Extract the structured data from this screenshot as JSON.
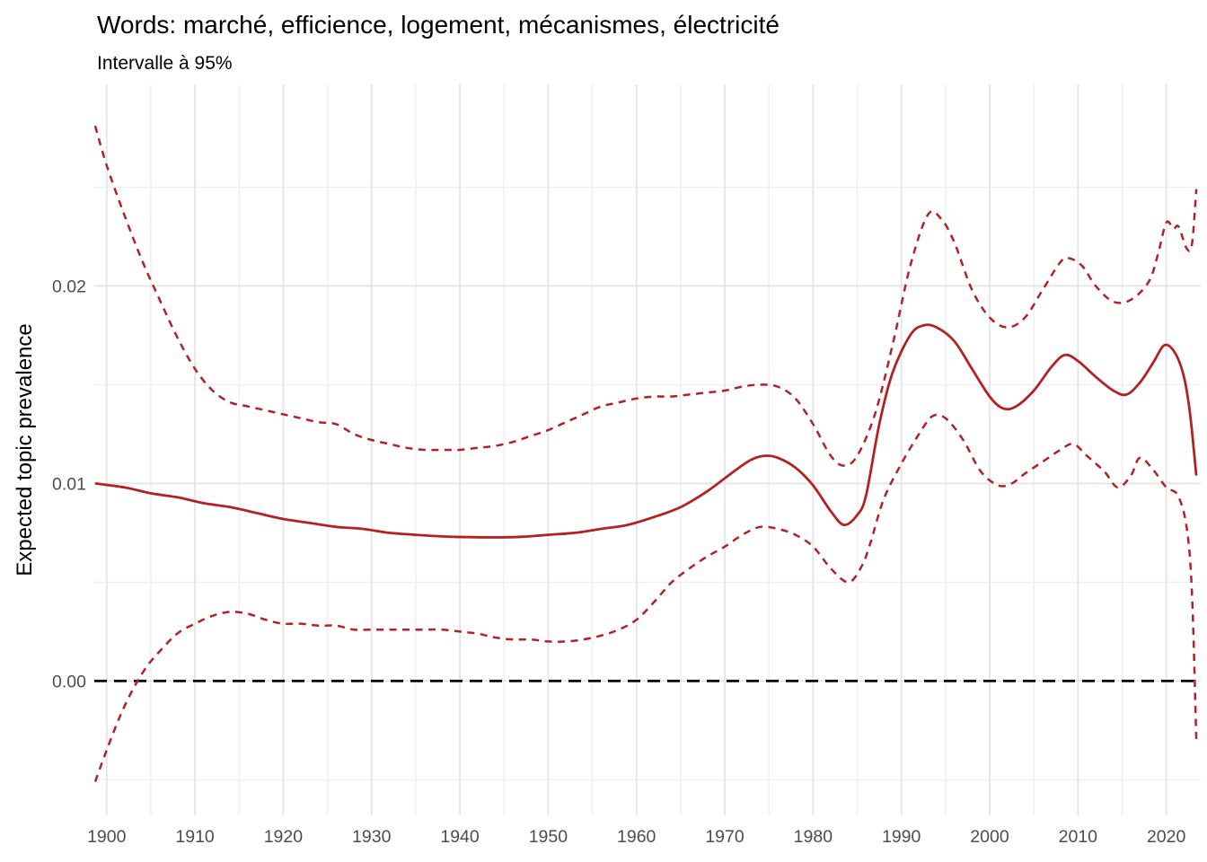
{
  "chart_data": {
    "type": "line",
    "title": "Words: marché, efficience, logement, mécanismes, électricité",
    "subtitle": "Intervalle à 95%",
    "xlabel": "",
    "ylabel": "Expected topic prevalence",
    "xlim": [
      1898.6,
      2023.9
    ],
    "ylim": [
      -0.0068,
      0.0302
    ],
    "grid": "major+minor",
    "legend": "none",
    "x_major_ticks": [
      1900,
      1910,
      1920,
      1930,
      1940,
      1950,
      1960,
      1970,
      1980,
      1990,
      2000,
      2010,
      2020
    ],
    "x_major_tick_labels": [
      "1900",
      "1910",
      "1920",
      "1930",
      "1940",
      "1950",
      "1960",
      "1970",
      "1980",
      "1990",
      "2000",
      "2010",
      "2020"
    ],
    "x_minor_ticks": [
      1905,
      1915,
      1925,
      1935,
      1945,
      1955,
      1965,
      1975,
      1985,
      1995,
      2005,
      2015
    ],
    "y_major_ticks": [
      0,
      0.01,
      0.02
    ],
    "y_major_tick_labels": [
      "0.00",
      "0.01",
      "0.02"
    ],
    "y_minor_ticks": [
      -0.005,
      0.005,
      0.015,
      0.025
    ],
    "reference_line": {
      "y": 0,
      "style": "dashed",
      "color": "#000000"
    },
    "colors": {
      "series": "#B22222",
      "reference": "#000000",
      "grid_major": "#E4E4E4",
      "grid_minor": "#F0F0F0",
      "tick_label": "#4D4D4D",
      "text": "#000000",
      "background": "#FFFFFF"
    },
    "series": [
      {
        "name": "mean-estimate",
        "style": "solid",
        "points": [
          [
            1898.7,
            0.01
          ],
          [
            1902,
            0.0098
          ],
          [
            1905,
            0.0095
          ],
          [
            1908,
            0.0093
          ],
          [
            1911,
            0.009
          ],
          [
            1914,
            0.0088
          ],
          [
            1917,
            0.0085
          ],
          [
            1920,
            0.0082
          ],
          [
            1923,
            0.008
          ],
          [
            1926,
            0.0078
          ],
          [
            1929,
            0.0077
          ],
          [
            1932,
            0.0075
          ],
          [
            1935,
            0.0074
          ],
          [
            1938,
            0.00732
          ],
          [
            1941,
            0.00728
          ],
          [
            1944,
            0.00727
          ],
          [
            1947,
            0.0073
          ],
          [
            1950,
            0.0074
          ],
          [
            1953,
            0.0075
          ],
          [
            1956,
            0.0077
          ],
          [
            1959,
            0.0079
          ],
          [
            1962,
            0.0083
          ],
          [
            1965,
            0.0088
          ],
          [
            1968,
            0.0096
          ],
          [
            1971,
            0.0106
          ],
          [
            1973,
            0.0112
          ],
          [
            1974.5,
            0.0114
          ],
          [
            1976,
            0.0113
          ],
          [
            1978,
            0.0108
          ],
          [
            1980,
            0.0099
          ],
          [
            1982,
            0.0086
          ],
          [
            1983.5,
            0.0079
          ],
          [
            1985,
            0.0084
          ],
          [
            1986,
            0.0094
          ],
          [
            1987.5,
            0.013
          ],
          [
            1989,
            0.0156
          ],
          [
            1991,
            0.0175
          ],
          [
            1992.5,
            0.018
          ],
          [
            1994,
            0.0179
          ],
          [
            1996,
            0.0172
          ],
          [
            1998,
            0.0158
          ],
          [
            2000,
            0.0144
          ],
          [
            2001.5,
            0.0138
          ],
          [
            2003,
            0.0139
          ],
          [
            2005,
            0.0147
          ],
          [
            2007,
            0.0159
          ],
          [
            2008.5,
            0.0165
          ],
          [
            2010,
            0.0162
          ],
          [
            2012,
            0.0154
          ],
          [
            2014,
            0.0147
          ],
          [
            2015.5,
            0.0145
          ],
          [
            2017,
            0.0151
          ],
          [
            2018.5,
            0.0161
          ],
          [
            2019.8,
            0.017
          ],
          [
            2021,
            0.0166
          ],
          [
            2022,
            0.0154
          ],
          [
            2022.7,
            0.0135
          ],
          [
            2023.4,
            0.0104
          ]
        ]
      },
      {
        "name": "upper-95ci",
        "style": "dashed",
        "points": [
          [
            1898.7,
            0.0281
          ],
          [
            1900,
            0.0261
          ],
          [
            1902,
            0.0236
          ],
          [
            1904,
            0.0213
          ],
          [
            1906,
            0.0193
          ],
          [
            1908,
            0.0174
          ],
          [
            1910,
            0.0158
          ],
          [
            1912,
            0.0147
          ],
          [
            1914,
            0.0141
          ],
          [
            1916,
            0.0139
          ],
          [
            1918,
            0.0137
          ],
          [
            1920,
            0.0135
          ],
          [
            1922,
            0.0133
          ],
          [
            1924,
            0.0131
          ],
          [
            1926,
            0.013
          ],
          [
            1928,
            0.0125
          ],
          [
            1930,
            0.0122
          ],
          [
            1932,
            0.012
          ],
          [
            1934,
            0.0118
          ],
          [
            1936,
            0.0117
          ],
          [
            1938,
            0.0117
          ],
          [
            1940,
            0.0117
          ],
          [
            1942,
            0.0118
          ],
          [
            1944,
            0.0119
          ],
          [
            1946,
            0.0121
          ],
          [
            1948,
            0.0124
          ],
          [
            1950,
            0.0127
          ],
          [
            1952,
            0.0131
          ],
          [
            1954,
            0.0135
          ],
          [
            1956,
            0.0139
          ],
          [
            1958,
            0.0141
          ],
          [
            1960,
            0.0143
          ],
          [
            1962,
            0.0144
          ],
          [
            1964,
            0.0144
          ],
          [
            1966,
            0.0145
          ],
          [
            1968,
            0.0146
          ],
          [
            1970,
            0.0147
          ],
          [
            1972,
            0.0149
          ],
          [
            1974,
            0.015
          ],
          [
            1976,
            0.0149
          ],
          [
            1978,
            0.0143
          ],
          [
            1980,
            0.013
          ],
          [
            1982,
            0.0114
          ],
          [
            1983.5,
            0.0109
          ],
          [
            1985,
            0.0114
          ],
          [
            1987,
            0.0135
          ],
          [
            1989,
            0.017
          ],
          [
            1991,
            0.021
          ],
          [
            1993,
            0.0236
          ],
          [
            1994.5,
            0.0234
          ],
          [
            1996,
            0.0222
          ],
          [
            1998,
            0.0198
          ],
          [
            2000,
            0.0184
          ],
          [
            2002,
            0.0179
          ],
          [
            2004,
            0.0184
          ],
          [
            2006,
            0.0198
          ],
          [
            2008,
            0.0212
          ],
          [
            2009,
            0.0214
          ],
          [
            2010.5,
            0.021
          ],
          [
            2012,
            0.02
          ],
          [
            2014,
            0.0192
          ],
          [
            2016,
            0.0193
          ],
          [
            2018,
            0.0202
          ],
          [
            2019,
            0.0215
          ],
          [
            2020,
            0.0232
          ],
          [
            2020.8,
            0.0229
          ],
          [
            2021.4,
            0.023
          ],
          [
            2022.3,
            0.0219
          ],
          [
            2022.9,
            0.0221
          ],
          [
            2023.4,
            0.0249
          ]
        ]
      },
      {
        "name": "lower-95ci",
        "style": "dashed",
        "points": [
          [
            1898.7,
            -0.0051
          ],
          [
            1900,
            -0.0035
          ],
          [
            1901.5,
            -0.0018
          ],
          [
            1903,
            -0.0004
          ],
          [
            1904.5,
            0.0007
          ],
          [
            1906,
            0.0015
          ],
          [
            1908,
            0.0024
          ],
          [
            1910,
            0.0029
          ],
          [
            1912,
            0.0033
          ],
          [
            1914,
            0.0035
          ],
          [
            1916,
            0.0034
          ],
          [
            1918,
            0.0031
          ],
          [
            1920,
            0.0029
          ],
          [
            1922,
            0.0029
          ],
          [
            1924,
            0.0028
          ],
          [
            1926,
            0.0028
          ],
          [
            1928,
            0.0026
          ],
          [
            1930,
            0.0026
          ],
          [
            1932,
            0.0026
          ],
          [
            1934,
            0.0026
          ],
          [
            1936,
            0.0026
          ],
          [
            1938,
            0.0026
          ],
          [
            1940,
            0.0025
          ],
          [
            1942,
            0.0024
          ],
          [
            1944,
            0.0022
          ],
          [
            1946,
            0.0021
          ],
          [
            1948,
            0.0021
          ],
          [
            1950,
            0.002
          ],
          [
            1952,
            0.002
          ],
          [
            1954,
            0.0021
          ],
          [
            1956,
            0.0023
          ],
          [
            1958,
            0.0026
          ],
          [
            1960,
            0.0031
          ],
          [
            1962,
            0.004
          ],
          [
            1964,
            0.005
          ],
          [
            1966,
            0.0057
          ],
          [
            1968,
            0.0063
          ],
          [
            1970,
            0.0068
          ],
          [
            1972,
            0.0074
          ],
          [
            1974,
            0.0078
          ],
          [
            1976,
            0.0077
          ],
          [
            1978,
            0.0074
          ],
          [
            1980,
            0.0068
          ],
          [
            1982,
            0.0057
          ],
          [
            1984,
            0.005
          ],
          [
            1985.5,
            0.0058
          ],
          [
            1986.5,
            0.007
          ],
          [
            1988,
            0.0092
          ],
          [
            1990,
            0.011
          ],
          [
            1992,
            0.0125
          ],
          [
            1993.5,
            0.0134
          ],
          [
            1995,
            0.0133
          ],
          [
            1997,
            0.0122
          ],
          [
            1999,
            0.0106
          ],
          [
            2001,
            0.0099
          ],
          [
            2002.5,
            0.01
          ],
          [
            2004,
            0.0105
          ],
          [
            2006,
            0.0111
          ],
          [
            2008,
            0.0117
          ],
          [
            2009.5,
            0.012
          ],
          [
            2011,
            0.0114
          ],
          [
            2013,
            0.0106
          ],
          [
            2014.5,
            0.0098
          ],
          [
            2016,
            0.0104
          ],
          [
            2017,
            0.0113
          ],
          [
            2018.5,
            0.0107
          ],
          [
            2020,
            0.0098
          ],
          [
            2021.3,
            0.0094
          ],
          [
            2022.3,
            0.0078
          ],
          [
            2022.9,
            0.0045
          ],
          [
            2023.4,
            -0.003
          ]
        ]
      }
    ]
  }
}
